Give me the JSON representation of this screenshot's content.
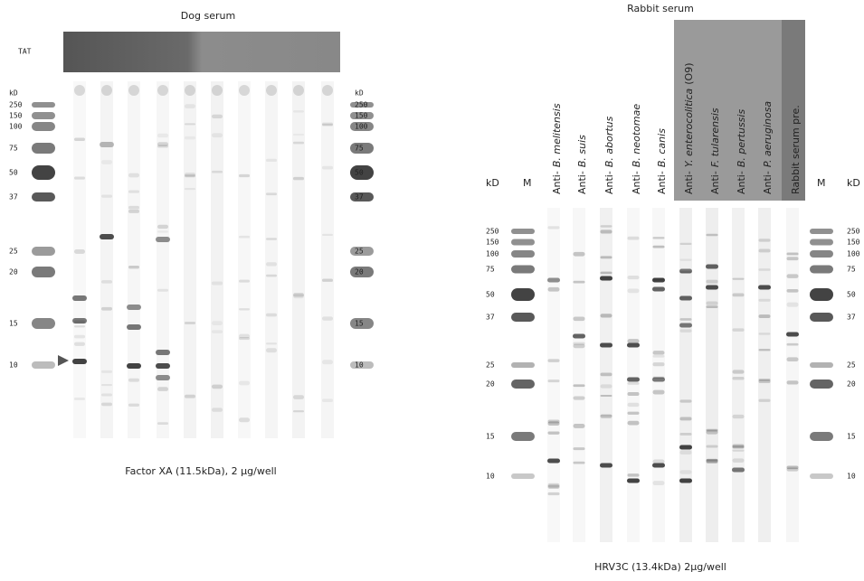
{
  "left": {
    "title": "Dog serum",
    "tat_label": "TAT",
    "unit": "kD",
    "markers": [
      "250",
      "150",
      "100",
      "75",
      "50",
      "37",
      "25",
      "20",
      "15",
      "10"
    ],
    "caption": "Factor XA (11.5kDa), 2 μg/well"
  },
  "right": {
    "title": "Rabbit serum",
    "unit": "kD",
    "marker_lane": "M",
    "lanes": [
      {
        "prefix": "Anti-",
        "species": "B. melitensis"
      },
      {
        "prefix": "Anti-",
        "species": "B. suis"
      },
      {
        "prefix": "Anti-",
        "species": "B. abortus"
      },
      {
        "prefix": "Anti-",
        "species": "B. neotomae"
      },
      {
        "prefix": "Anti-",
        "species": "B. canis"
      },
      {
        "prefix": "Anti-",
        "species": "Y. enterocolitica",
        "suffix": "(O9)"
      },
      {
        "prefix": "Anti-",
        "species": "F. tularensis"
      },
      {
        "prefix": "Anti-",
        "species": "B. pertussis"
      },
      {
        "prefix": "Anti-",
        "species": "P. aeruginosa"
      },
      {
        "prefix": "Rabbit serum pre."
      }
    ],
    "markers": [
      "250",
      "150",
      "100",
      "75",
      "50",
      "37",
      "25",
      "20",
      "15",
      "10"
    ],
    "caption": "HRV3C (13.4kDa)  2μg/well"
  }
}
